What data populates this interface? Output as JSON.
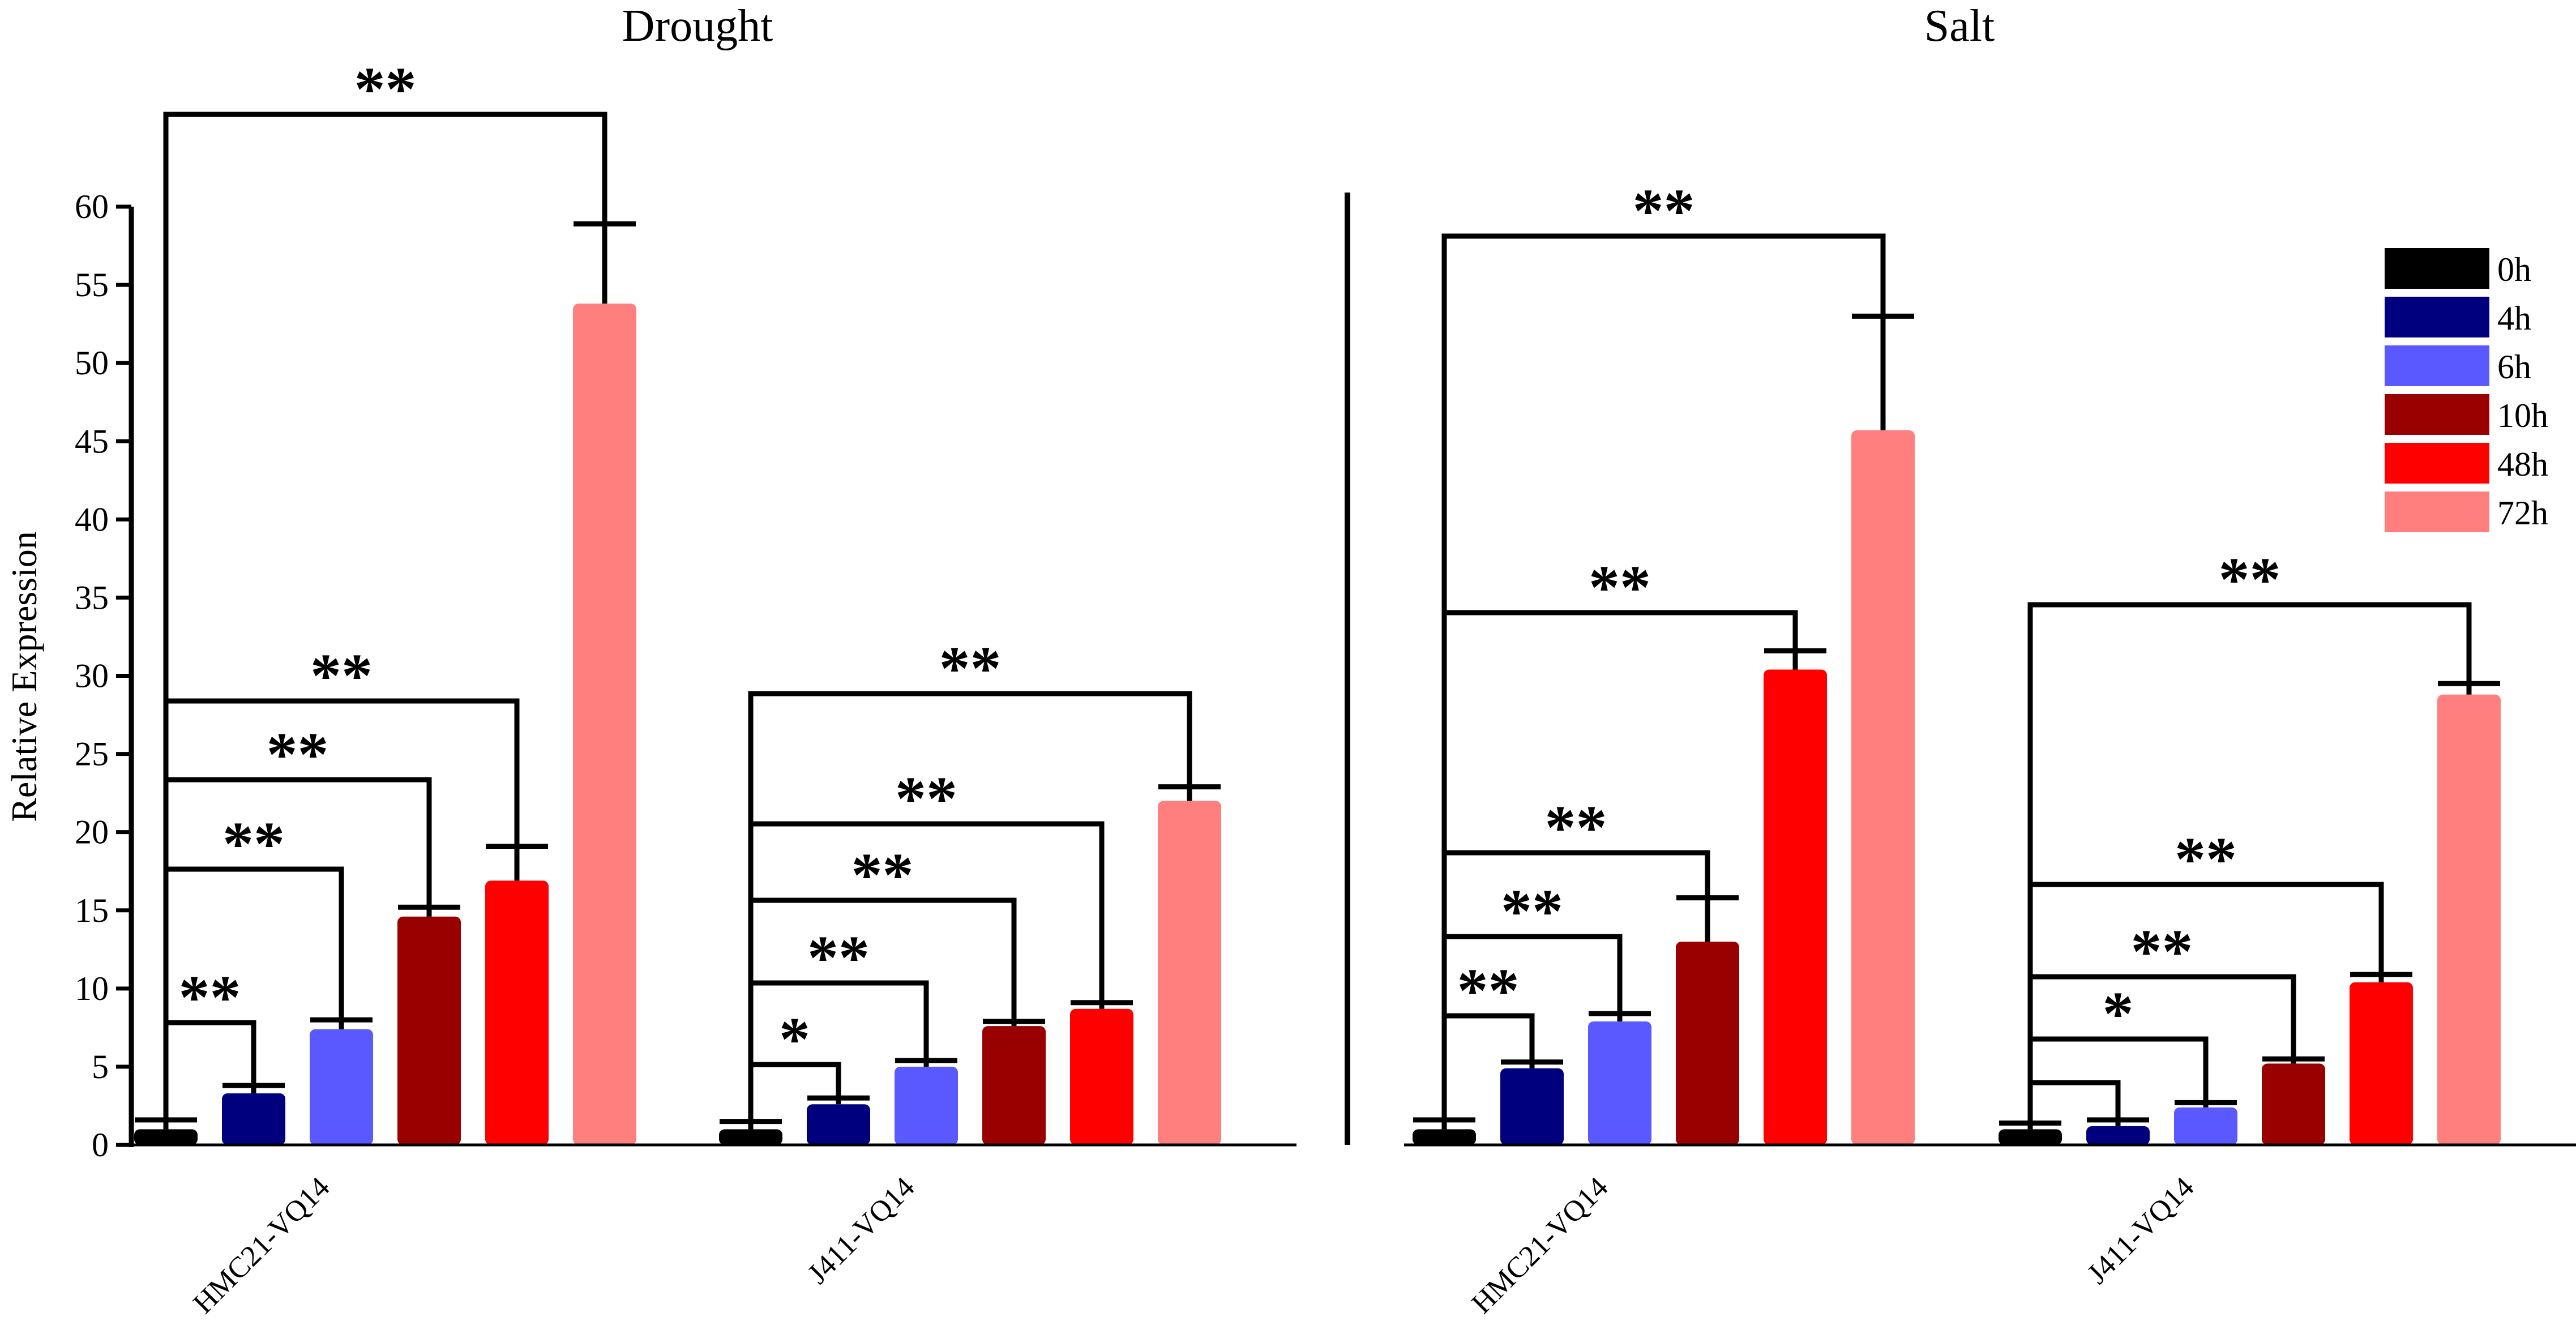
{
  "chart_data": {
    "type": "bar",
    "ylabel": "Relative Expression",
    "ylim": [
      0,
      60
    ],
    "yticks": [
      "0",
      "5",
      "10",
      "15",
      "20",
      "25",
      "30",
      "35",
      "40",
      "45",
      "50",
      "55",
      "60"
    ],
    "legend": {
      "position": "top-right",
      "entries": [
        {
          "label": "0h",
          "color": "#000000"
        },
        {
          "label": "4h",
          "color": "#00007f"
        },
        {
          "label": "6h",
          "color": "#5959ff"
        },
        {
          "label": "10h",
          "color": "#990000"
        },
        {
          "label": "48h",
          "color": "#ff0000"
        },
        {
          "label": "72h",
          "color": "#ff7f7f"
        }
      ]
    },
    "panels": [
      {
        "title": "Drought",
        "groups": [
          {
            "category": "HMC21-VQ14",
            "values": [
              1.0,
              3.3,
              7.4,
              14.6,
              16.9,
              53.8
            ],
            "errors": [
              0.6,
              0.5,
              0.6,
              0.6,
              2.2,
              5.1
            ],
            "significance": [
              "**",
              "**",
              "**",
              "**",
              "**"
            ]
          },
          {
            "category": "J411-VQ14",
            "values": [
              1.0,
              2.6,
              5.0,
              7.6,
              8.7,
              22.0
            ],
            "errors": [
              0.5,
              0.4,
              0.4,
              0.3,
              0.4,
              0.9
            ],
            "significance": [
              "*",
              "**",
              "**",
              "**",
              "**"
            ]
          }
        ]
      },
      {
        "title": "Salt",
        "groups": [
          {
            "category": "HMC21-VQ14",
            "values": [
              1.0,
              4.9,
              7.9,
              13.0,
              30.4,
              45.7
            ],
            "errors": [
              0.6,
              0.4,
              0.5,
              2.8,
              1.2,
              7.3
            ],
            "significance": [
              "**",
              "**",
              "**",
              "**",
              "**"
            ]
          },
          {
            "category": "J411-VQ14",
            "values": [
              1.0,
              1.2,
              2.4,
              5.2,
              10.4,
              28.8
            ],
            "errors": [
              0.4,
              0.4,
              0.3,
              0.3,
              0.5,
              0.7
            ],
            "significance": [
              "",
              "*",
              "**",
              "**",
              "**"
            ]
          }
        ]
      }
    ]
  }
}
